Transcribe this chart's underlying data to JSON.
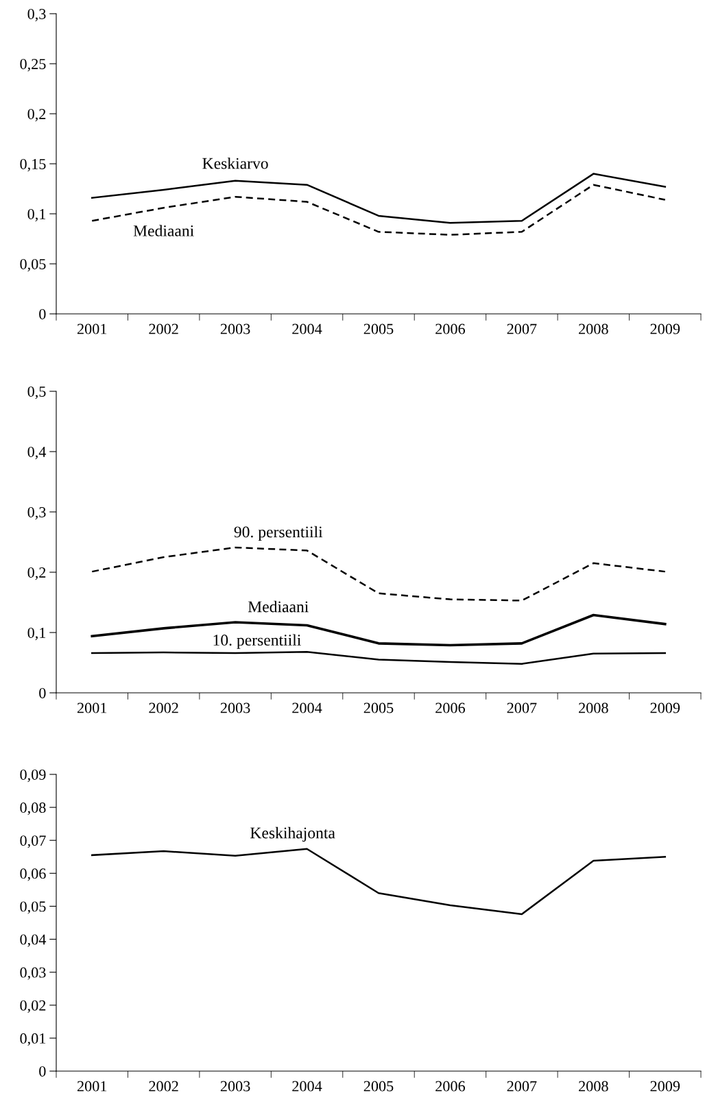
{
  "chart_data": [
    {
      "type": "line",
      "categories": [
        "2001",
        "2002",
        "2003",
        "2004",
        "2005",
        "2006",
        "2007",
        "2008",
        "2009"
      ],
      "ylim": [
        0,
        0.3
      ],
      "yticks": [
        {
          "value": 0,
          "label": "0"
        },
        {
          "value": 0.05,
          "label": "0,05"
        },
        {
          "value": 0.1,
          "label": "0,1"
        },
        {
          "value": 0.15,
          "label": "0,15"
        },
        {
          "value": 0.2,
          "label": "0,2"
        },
        {
          "value": 0.25,
          "label": "0,25"
        },
        {
          "value": 0.3,
          "label": "0,3"
        }
      ],
      "grid": false,
      "legend": false,
      "series": [
        {
          "name": "Keskiarvo",
          "color": "#000000",
          "line_style": "solid",
          "values": [
            0.116,
            0.124,
            0.133,
            0.129,
            0.098,
            0.091,
            0.093,
            0.14,
            0.127
          ]
        },
        {
          "name": "Mediaani",
          "color": "#000000",
          "line_style": "dashed",
          "values": [
            0.093,
            0.106,
            0.117,
            0.112,
            0.082,
            0.079,
            0.082,
            0.129,
            0.114
          ]
        }
      ]
    },
    {
      "type": "line",
      "categories": [
        "2001",
        "2002",
        "2003",
        "2004",
        "2005",
        "2006",
        "2007",
        "2008",
        "2009"
      ],
      "ylim": [
        0,
        0.5
      ],
      "yticks": [
        {
          "value": 0,
          "label": "0"
        },
        {
          "value": 0.1,
          "label": "0,1"
        },
        {
          "value": 0.2,
          "label": "0,2"
        },
        {
          "value": 0.3,
          "label": "0,3"
        },
        {
          "value": 0.4,
          "label": "0,4"
        },
        {
          "value": 0.5,
          "label": "0,5"
        }
      ],
      "grid": false,
      "legend": false,
      "series": [
        {
          "name": "90. persentiili",
          "color": "#000000",
          "line_style": "dashed",
          "values": [
            0.201,
            0.225,
            0.241,
            0.236,
            0.165,
            0.155,
            0.153,
            0.215,
            0.201
          ]
        },
        {
          "name": "Mediaani",
          "color": "#000000",
          "line_style": "solid",
          "values": [
            0.094,
            0.107,
            0.117,
            0.112,
            0.082,
            0.079,
            0.082,
            0.129,
            0.114
          ]
        },
        {
          "name": "10. persentiili",
          "color": "#000000",
          "line_style": "solid",
          "values": [
            0.066,
            0.067,
            0.066,
            0.068,
            0.055,
            0.051,
            0.048,
            0.065,
            0.066
          ]
        }
      ]
    },
    {
      "type": "line",
      "categories": [
        "2001",
        "2002",
        "2003",
        "2004",
        "2005",
        "2006",
        "2007",
        "2008",
        "2009"
      ],
      "ylim": [
        0,
        0.09
      ],
      "yticks": [
        {
          "value": 0,
          "label": "0"
        },
        {
          "value": 0.01,
          "label": "0,01"
        },
        {
          "value": 0.02,
          "label": "0,02"
        },
        {
          "value": 0.03,
          "label": "0,03"
        },
        {
          "value": 0.04,
          "label": "0,04"
        },
        {
          "value": 0.05,
          "label": "0,05"
        },
        {
          "value": 0.06,
          "label": "0,06"
        },
        {
          "value": 0.07,
          "label": "0,07"
        },
        {
          "value": 0.08,
          "label": "0,08"
        },
        {
          "value": 0.09,
          "label": "0,09"
        }
      ],
      "grid": false,
      "legend": false,
      "series": [
        {
          "name": "Keskihajonta",
          "color": "#000000",
          "line_style": "solid",
          "values": [
            0.0655,
            0.0667,
            0.0653,
            0.0674,
            0.054,
            0.0503,
            0.0476,
            0.0638,
            0.065
          ]
        }
      ]
    }
  ]
}
